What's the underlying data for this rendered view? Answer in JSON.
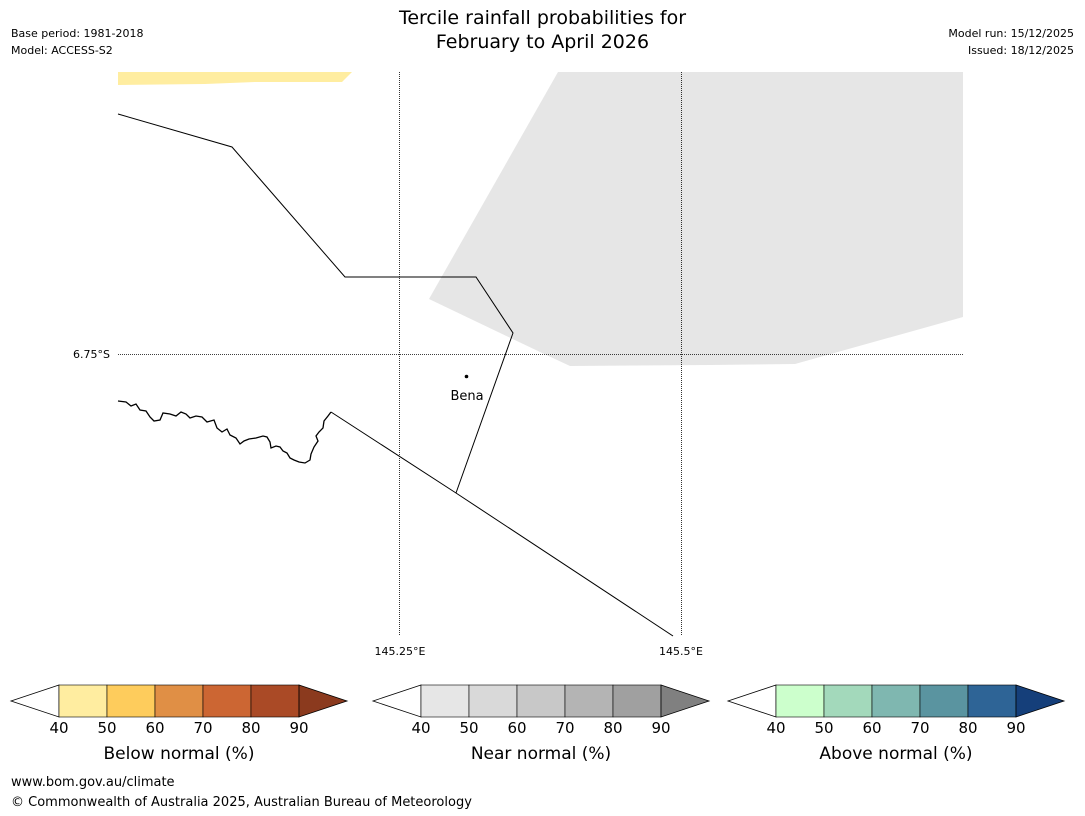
{
  "header": {
    "title_line1": "Tercile rainfall probabilities for",
    "title_line2": "February to April 2026",
    "base_period": "Base period: 1981-2018",
    "model": "Model: ACCESS-S2",
    "model_run": "Model run: 15/12/2025",
    "issued": "Issued: 18/12/2025"
  },
  "map": {
    "lat_label": "6.75°S",
    "lon_labels": [
      "145.25°E",
      "145.5°E"
    ],
    "place": "Bena",
    "colors": {
      "below_region": "#ffeda0",
      "near_region": "#e6e6e6"
    }
  },
  "colorbars": [
    {
      "label": "Below normal (%)",
      "ticks": [
        "40",
        "50",
        "60",
        "70",
        "80",
        "90"
      ],
      "colors": [
        "#ffeda0",
        "#fecc5c",
        "#e08f45",
        "#cc6633",
        "#aa4a26",
        "#8b3a1e"
      ]
    },
    {
      "label": "Near normal (%)",
      "ticks": [
        "40",
        "50",
        "60",
        "70",
        "80",
        "90"
      ],
      "colors": [
        "#e6e6e6",
        "#d9d9d9",
        "#c8c8c8",
        "#b4b4b4",
        "#a0a0a0",
        "#808080"
      ]
    },
    {
      "label": "Above normal (%)",
      "ticks": [
        "40",
        "50",
        "60",
        "70",
        "80",
        "90"
      ],
      "colors": [
        "#ccffcc",
        "#a3d9bb",
        "#7fb7b0",
        "#5a94a0",
        "#2e6496",
        "#153f7a"
      ]
    }
  ],
  "footer": {
    "url": "www.bom.gov.au/climate",
    "copyright": "© Commonwealth of Australia 2025, Australian Bureau of Meteorology"
  }
}
